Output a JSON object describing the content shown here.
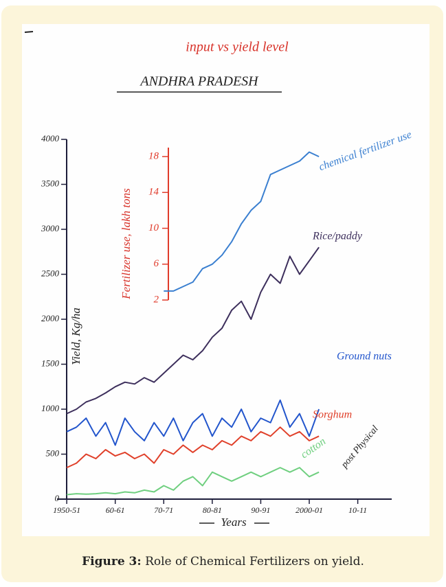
{
  "chart_data": {
    "type": "line",
    "subtitle": "input vs yield level",
    "title": "ANDHRA PRADESH",
    "ylabel": "Yield, Kg/ha",
    "y2label": "Fertilizer use, lakh tons",
    "xlabel": "Years",
    "annotations": [
      "post Physical"
    ],
    "x": [
      1950,
      1952,
      1954,
      1956,
      1958,
      1960,
      1962,
      1964,
      1966,
      1968,
      1970,
      1972,
      1974,
      1976,
      1978,
      1980,
      1982,
      1984,
      1986,
      1988,
      1990,
      1992,
      1994,
      1996,
      1998,
      2000,
      2002
    ],
    "xlim": [
      1948,
      2017
    ],
    "xticks": [
      {
        "value": 1950,
        "label": "1950-51"
      },
      {
        "value": 1960,
        "label": "60-61"
      },
      {
        "value": 1970,
        "label": "70-71"
      },
      {
        "value": 1980,
        "label": "80-81"
      },
      {
        "value": 1990,
        "label": "90-91"
      },
      {
        "value": 2000,
        "label": "2000-01"
      },
      {
        "value": 2010,
        "label": "10-11"
      }
    ],
    "ylim": [
      0,
      4000
    ],
    "yticks": [
      0,
      500,
      1000,
      1500,
      2000,
      2500,
      3000,
      3500,
      4000
    ],
    "y2lim": [
      2,
      19
    ],
    "y2ticks": [
      2,
      6,
      10,
      14,
      18
    ],
    "series": [
      {
        "name": "Rice/paddy",
        "color": "#3d2f5c",
        "values": [
          950,
          1000,
          1080,
          1120,
          1180,
          1250,
          1300,
          1280,
          1350,
          1300,
          1400,
          1500,
          1600,
          1550,
          1650,
          1800,
          1900,
          2100,
          2200,
          2000,
          2300,
          2500,
          2400,
          2700,
          2500,
          2650,
          2800
        ]
      },
      {
        "name": "Ground nuts",
        "color": "#2255cc",
        "values": [
          750,
          800,
          900,
          700,
          850,
          600,
          900,
          750,
          650,
          850,
          700,
          900,
          650,
          850,
          950,
          700,
          900,
          800,
          1000,
          750,
          900,
          850,
          1100,
          800,
          950,
          700,
          1000
        ]
      },
      {
        "name": "Sorghum",
        "color": "#e0402a",
        "values": [
          350,
          400,
          500,
          450,
          550,
          480,
          520,
          450,
          500,
          400,
          550,
          500,
          600,
          520,
          600,
          550,
          650,
          600,
          700,
          650,
          750,
          700,
          800,
          700,
          750,
          650,
          700
        ]
      },
      {
        "name": "cotton",
        "color": "#6fcf7f",
        "values": [
          50,
          60,
          55,
          60,
          70,
          60,
          80,
          70,
          100,
          80,
          150,
          100,
          200,
          250,
          150,
          300,
          250,
          200,
          250,
          300,
          250,
          300,
          350,
          300,
          350,
          250,
          300
        ]
      },
      {
        "name": "chemical fertilizer use",
        "color": "#3a7fd0",
        "axis": "y2",
        "values": [
          null,
          null,
          null,
          null,
          null,
          null,
          null,
          null,
          null,
          null,
          3,
          3,
          3.5,
          4,
          5.5,
          6,
          7,
          8.5,
          10.5,
          12,
          13,
          16,
          16.5,
          17,
          17.5,
          18.5,
          18
        ]
      }
    ]
  },
  "caption": {
    "label": "Figure 3:",
    "text": "Role of Chemical Fertilizers on yield."
  }
}
